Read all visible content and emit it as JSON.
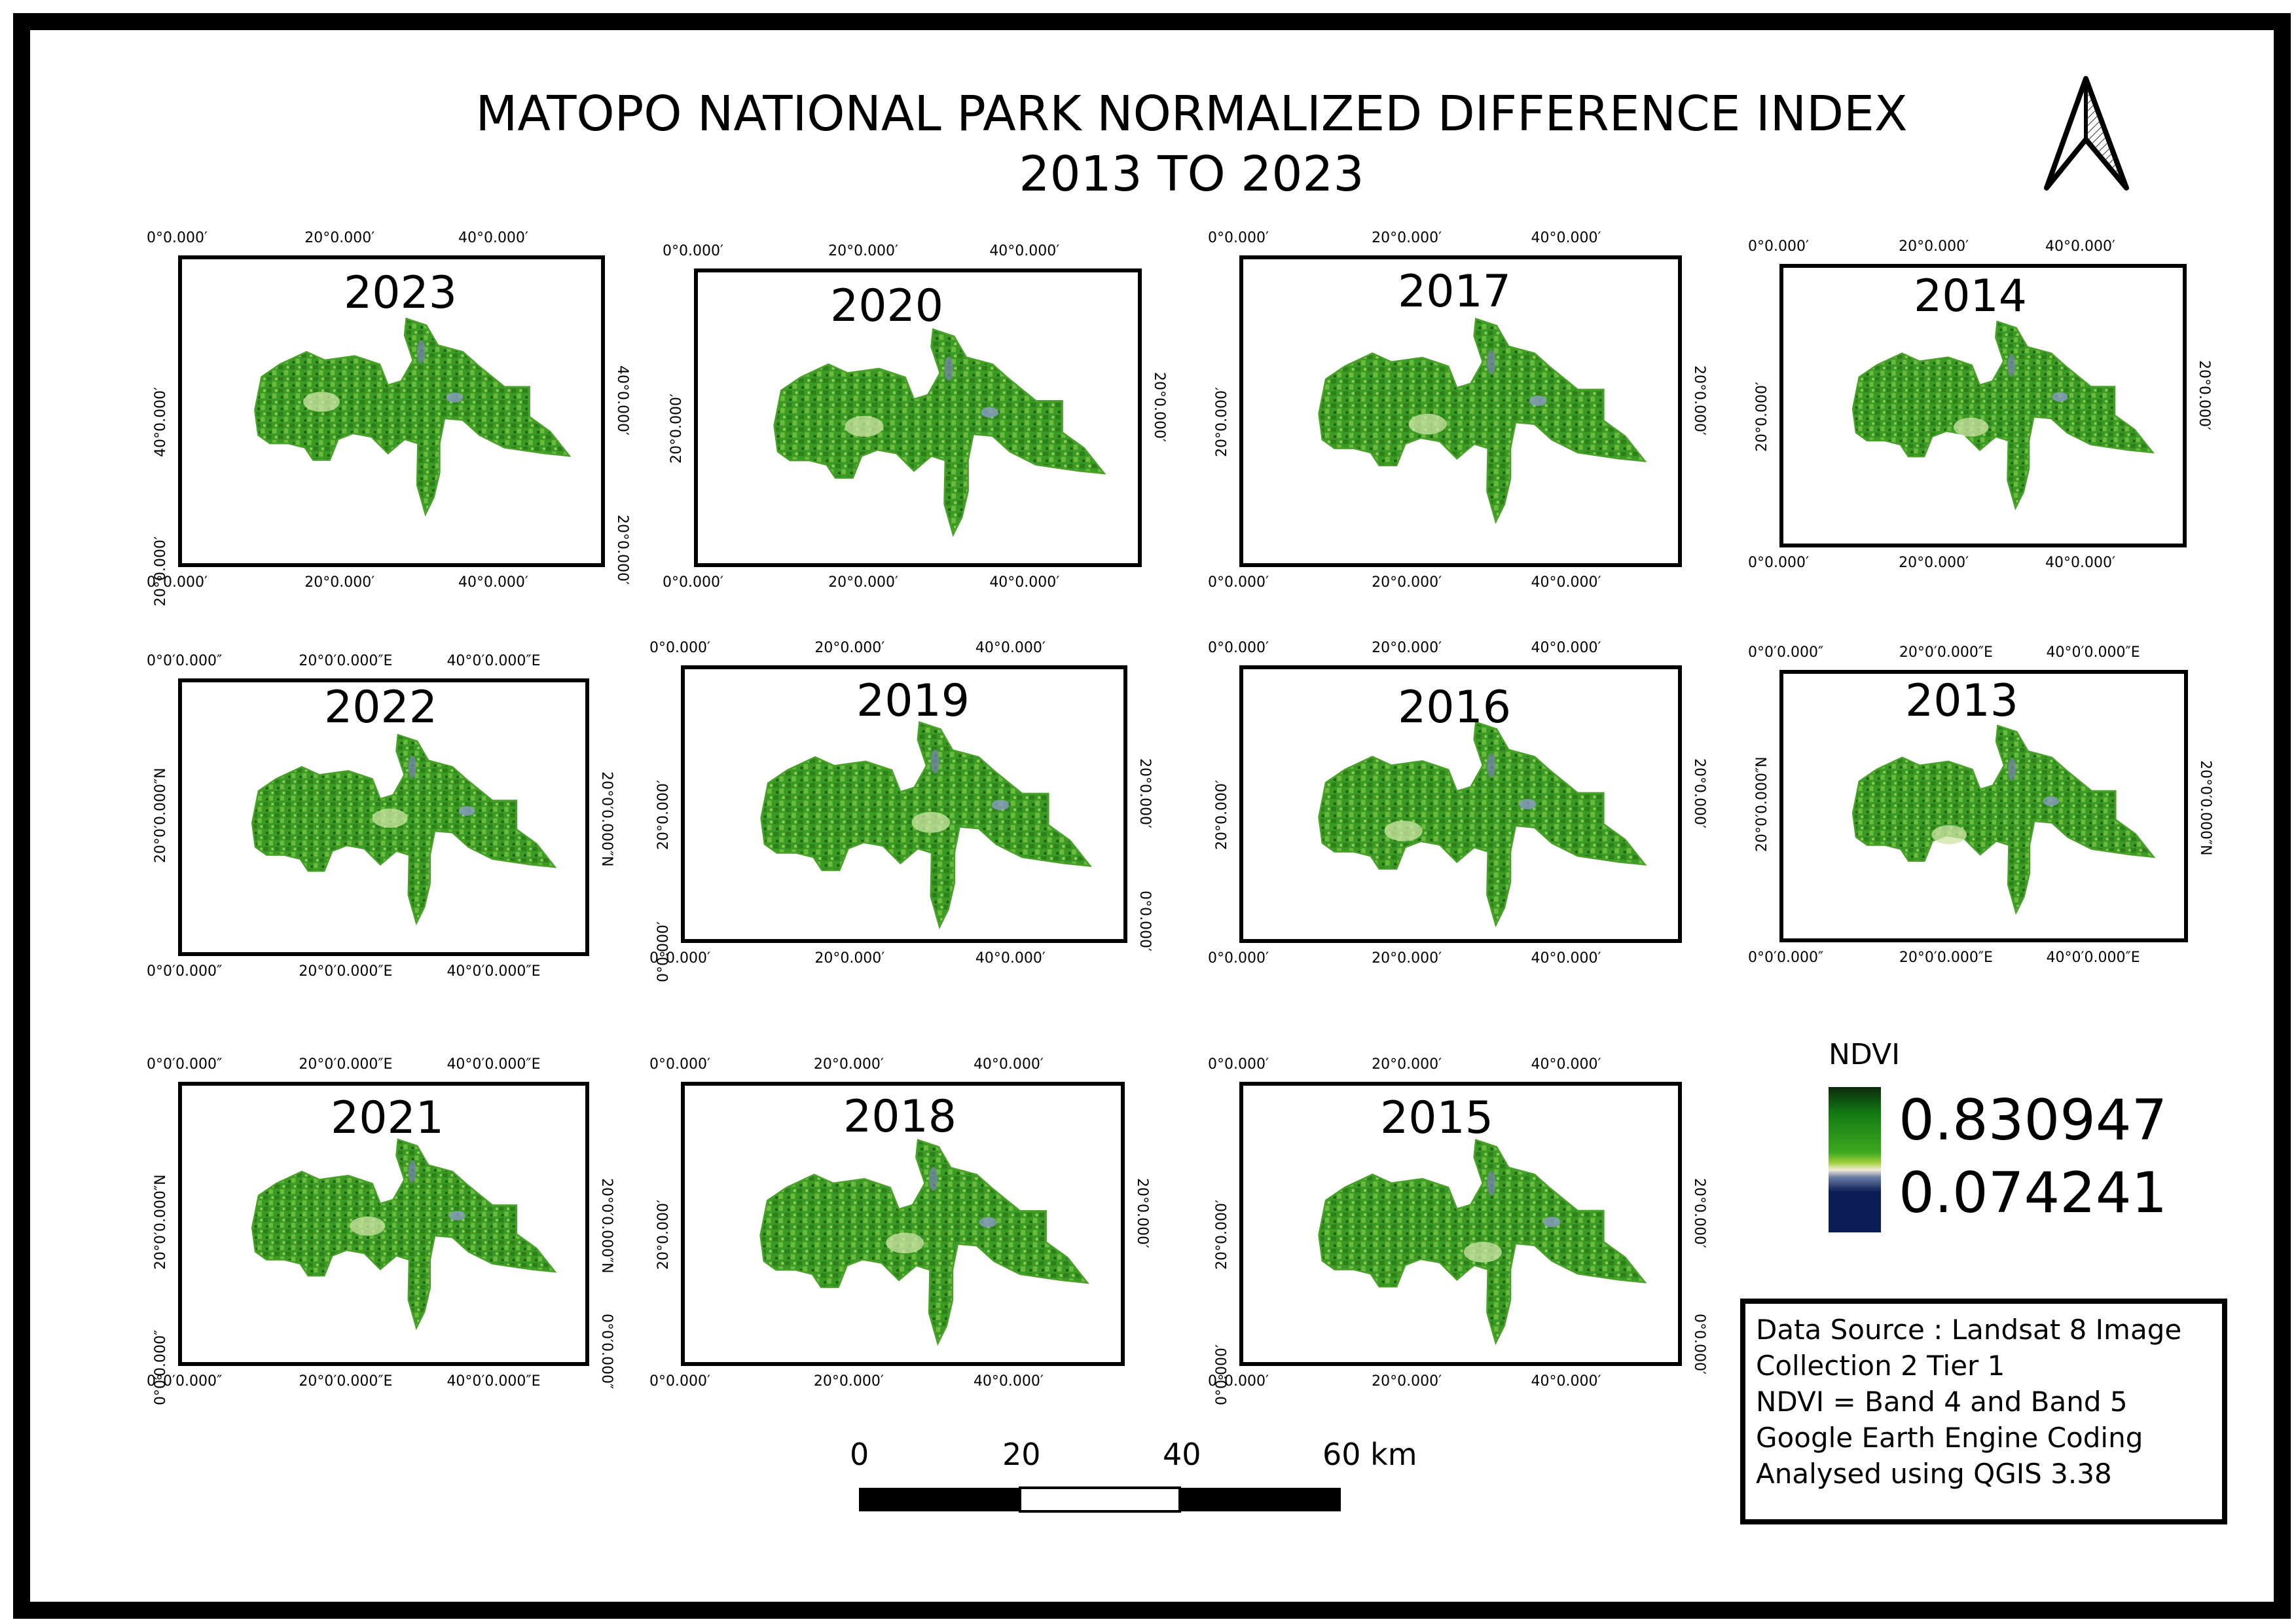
{
  "title": {
    "line1": "MATOPO NATIONAL PARK NORMALIZED DIFFERENCE INDEX",
    "line2": "2013 TO 2023"
  },
  "north_arrow": {
    "icon": "north-arrow-icon"
  },
  "maps": [
    {
      "year": "2023",
      "top": [
        "0°0.000′",
        "20°0.000′",
        "40°0.000′"
      ],
      "bottom": [
        "0°0.000′",
        "20°0.000′",
        "40°0.000′"
      ],
      "left": [
        "40°0.000′",
        "20°0.000′"
      ],
      "right": [
        "40°0.000′",
        "20°0.000′"
      ]
    },
    {
      "year": "2020",
      "top": [
        "0°0.000′",
        "20°0.000′",
        "40°0.000′"
      ],
      "bottom": [
        "0°0.000′",
        "20°0.000′",
        "40°0.000′"
      ],
      "left": [
        "20°0.000′"
      ],
      "right": [
        "20°0.000′"
      ]
    },
    {
      "year": "2017",
      "top": [
        "0°0.000′",
        "20°0.000′",
        "40°0.000′"
      ],
      "bottom": [
        "0°0.000′",
        "20°0.000′",
        "40°0.000′"
      ],
      "left": [
        "20°0.000′"
      ],
      "right": [
        "20°0.000′"
      ]
    },
    {
      "year": "2014",
      "top": [
        "0°0.000′",
        "20°0.000′",
        "40°0.000′"
      ],
      "bottom": [
        "0°0.000′",
        "20°0.000′",
        "40°0.000′"
      ],
      "left": [
        "20°0.000′"
      ],
      "right": [
        "20°0.000′"
      ]
    },
    {
      "year": "2022",
      "top": [
        "0°0′0.000″",
        "20°0′0.000″E",
        "40°0′0.000″E"
      ],
      "bottom": [
        "0°0′0.000″",
        "20°0′0.000″E",
        "40°0′0.000″E"
      ],
      "left": [
        "20°0′0.000″N"
      ],
      "right": [
        "20°0′0.000″N"
      ]
    },
    {
      "year": "2019",
      "top": [
        "0°0.000′",
        "20°0.000′",
        "40°0.000′"
      ],
      "bottom": [
        "0°0.000′",
        "20°0.000′",
        "40°0.000′"
      ],
      "left": [
        "20°0.000′",
        "0°0.000′"
      ],
      "right": [
        "20°0.000′",
        "0°0.000′"
      ]
    },
    {
      "year": "2016",
      "top": [
        "0°0.000′",
        "20°0.000′",
        "40°0.000′"
      ],
      "bottom": [
        "0°0.000′",
        "20°0.000′",
        "40°0.000′"
      ],
      "left": [
        "20°0.000′"
      ],
      "right": [
        "20°0.000′"
      ]
    },
    {
      "year": "2013",
      "top": [
        "0°0′0.000″",
        "20°0′0.000″E",
        "40°0′0.000″E"
      ],
      "bottom": [
        "0°0′0.000″",
        "20°0′0.000″E",
        "40°0′0.000″E"
      ],
      "left": [
        "20°0′0.000″N"
      ],
      "right": [
        "20°0′0.000″N"
      ]
    },
    {
      "year": "2021",
      "top": [
        "0°0′0.000″",
        "20°0′0.000″E",
        "40°0′0.000″E"
      ],
      "bottom": [
        "0°0′0.000″",
        "20°0′0.000″E",
        "40°0′0.000″E"
      ],
      "left": [
        "20°0′0.000″N",
        "0°0′0.000″"
      ],
      "right": [
        "20°0′0.000″N",
        "0°0′0.000″"
      ]
    },
    {
      "year": "2018",
      "top": [
        "0°0.000′",
        "20°0.000′",
        "40°0.000′"
      ],
      "bottom": [
        "0°0.000′",
        "20°0.000′",
        "40°0.000′"
      ],
      "left": [
        "20°0.000′"
      ],
      "right": [
        "20°0.000′"
      ]
    },
    {
      "year": "2015",
      "top": [
        "0°0.000′",
        "20°0.000′",
        "40°0.000′"
      ],
      "bottom": [
        "0°0.000′",
        "20°0.000′",
        "40°0.000′"
      ],
      "left": [
        "20°0.000′",
        "0°0.000′"
      ],
      "right": [
        "20°0.000′",
        "0°0.000′"
      ]
    }
  ],
  "legend": {
    "title": "NDVI",
    "max": "0.830947",
    "min": "0.074241",
    "colors": {
      "high": "#0c2a0c",
      "mid": "#3ea81f",
      "neutral": "#f3ecd7",
      "low": "#0a1d55"
    }
  },
  "scale_bar": {
    "labels": [
      "0",
      "20",
      "40",
      "60 km"
    ]
  },
  "info": {
    "lines": [
      "Data Source : Landsat 8 Image",
      "Collection 2 Tier 1",
      "NDVI = Band 4 and Band 5",
      "Google Earth Engine Coding",
      "Analysed using QGIS 3.38"
    ]
  }
}
